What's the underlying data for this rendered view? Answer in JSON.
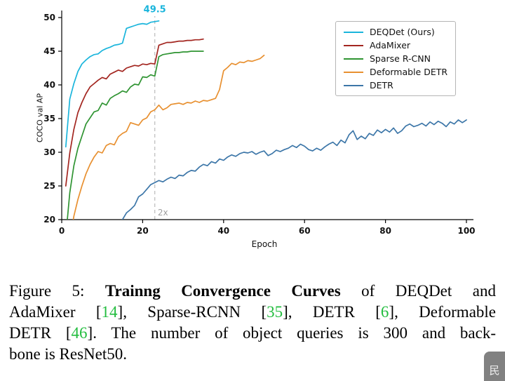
{
  "chart_data": {
    "type": "line",
    "title": "",
    "xlabel": "Epoch",
    "ylabel": "COCO val AP",
    "xlim": [
      0,
      100
    ],
    "ylim": [
      20,
      50
    ],
    "xticks": [
      0,
      20,
      40,
      60,
      80,
      100
    ],
    "yticks": [
      20,
      25,
      30,
      35,
      40,
      45,
      50
    ],
    "grid": false,
    "legend_position": "upper right",
    "vline": {
      "x": 23,
      "style": "dashed",
      "color": "#bbbbbb"
    },
    "annotations": [
      {
        "name": "peak-ap-label",
        "text": "49.5",
        "x": 23,
        "y": 50.8,
        "color": "#1ab5dc",
        "weight": "bold",
        "size": 13
      },
      {
        "name": "speedup-label",
        "text": "2x",
        "x": 25,
        "y": 20.6,
        "color": "#a0a0a0",
        "weight": "normal",
        "size": 12
      }
    ],
    "series": [
      {
        "name": "DEQDet (Ours)",
        "color": "#1ab5dc",
        "x_start": 1,
        "y": [
          30.8,
          37.9,
          40.2,
          42.0,
          43.1,
          43.7,
          44.2,
          44.5,
          44.6,
          45.1,
          45.4,
          45.6,
          45.9,
          46.0,
          46.2,
          48.4,
          48.6,
          48.8,
          49.0,
          49.1,
          49.0,
          49.3,
          49.4,
          49.5
        ]
      },
      {
        "name": "AdaMixer",
        "color": "#a32620",
        "x_start": 1,
        "y": [
          25.0,
          29.9,
          33.4,
          35.9,
          37.4,
          38.7,
          39.7,
          40.2,
          40.7,
          41.1,
          40.9,
          41.6,
          41.9,
          42.2,
          42.0,
          42.5,
          42.7,
          42.9,
          42.8,
          43.1,
          43.0,
          43.2,
          43.1,
          45.9,
          46.1,
          46.3,
          46.3,
          46.4,
          46.5,
          46.5,
          46.6,
          46.6,
          46.7,
          46.7,
          46.8
        ]
      },
      {
        "name": "Sparse R-CNN",
        "color": "#2f9432",
        "x_start": 1,
        "y": [
          17.5,
          24.0,
          28.0,
          30.6,
          32.4,
          34.2,
          35.1,
          36.0,
          36.2,
          37.3,
          37.0,
          38.0,
          38.4,
          38.7,
          39.1,
          38.9,
          39.7,
          40.1,
          40.0,
          41.2,
          41.1,
          41.5,
          41.3,
          44.2,
          44.5,
          44.6,
          44.7,
          44.8,
          44.8,
          44.9,
          44.9,
          45.0,
          45.0,
          45.0,
          45.0
        ]
      },
      {
        "name": "Deformable DETR",
        "color": "#e89030",
        "x_start": 2,
        "y": [
          17.0,
          20.5,
          23.0,
          25.0,
          26.8,
          28.2,
          29.3,
          30.1,
          29.9,
          31.0,
          31.3,
          31.1,
          32.3,
          32.8,
          33.1,
          34.4,
          34.2,
          34.0,
          34.8,
          35.1,
          36.0,
          36.3,
          37.0,
          36.3,
          36.6,
          37.1,
          37.2,
          37.3,
          37.1,
          37.4,
          37.3,
          37.6,
          37.4,
          37.7,
          37.6,
          37.8,
          38.0,
          39.3,
          42.1,
          42.6,
          43.2,
          43.0,
          43.4,
          43.3,
          43.6,
          43.5,
          43.7,
          43.9,
          44.4
        ]
      },
      {
        "name": "DETR",
        "color": "#3c76a8",
        "x_start": 14,
        "y": [
          19.0,
          20.0,
          21.0,
          21.5,
          22.1,
          23.4,
          23.8,
          24.5,
          25.2,
          25.5,
          25.8,
          25.6,
          26.0,
          26.3,
          26.1,
          26.6,
          26.5,
          27.0,
          27.3,
          27.2,
          27.8,
          28.2,
          28.0,
          28.6,
          28.4,
          29.0,
          28.8,
          29.3,
          29.6,
          29.4,
          29.8,
          30.0,
          29.9,
          30.1,
          29.7,
          30.0,
          30.2,
          29.5,
          29.8,
          30.3,
          30.1,
          30.4,
          30.6,
          31.0,
          30.7,
          31.2,
          30.9,
          30.4,
          30.2,
          30.6,
          30.3,
          30.8,
          31.2,
          31.5,
          31.0,
          31.8,
          31.4,
          32.6,
          33.2,
          31.9,
          32.4,
          32.0,
          32.8,
          32.5,
          33.3,
          32.9,
          33.4,
          33.0,
          33.6,
          32.8,
          33.2,
          33.9,
          34.2,
          33.8,
          34.0,
          34.3,
          33.9,
          34.5,
          34.1,
          34.6,
          34.3,
          33.8,
          34.5,
          34.2,
          34.8,
          34.4,
          34.8
        ]
      }
    ]
  },
  "caption": {
    "lines": [
      {
        "segments": [
          {
            "t": "Figure 5: ",
            "s": "n"
          },
          {
            "t": "Trainng Convergence Curves",
            "s": "b"
          },
          {
            "t": " of DEQDet and",
            "s": "n"
          }
        ]
      },
      {
        "segments": [
          {
            "t": "AdaMixer [",
            "s": "n"
          },
          {
            "t": "14",
            "s": "c"
          },
          {
            "t": "], Sparse-RCNN [",
            "s": "n"
          },
          {
            "t": "35",
            "s": "c"
          },
          {
            "t": "], DETR [",
            "s": "n"
          },
          {
            "t": "6",
            "s": "c"
          },
          {
            "t": "], Deformable",
            "s": "n"
          }
        ]
      },
      {
        "segments": [
          {
            "t": "DETR [",
            "s": "n"
          },
          {
            "t": "46",
            "s": "c"
          },
          {
            "t": "]. The number of object queries is 300 and back-",
            "s": "n"
          }
        ]
      },
      {
        "segments": [
          {
            "t": "bone is ResNet50.",
            "s": "n"
          }
        ]
      }
    ]
  },
  "watermark": {
    "text": "民"
  }
}
